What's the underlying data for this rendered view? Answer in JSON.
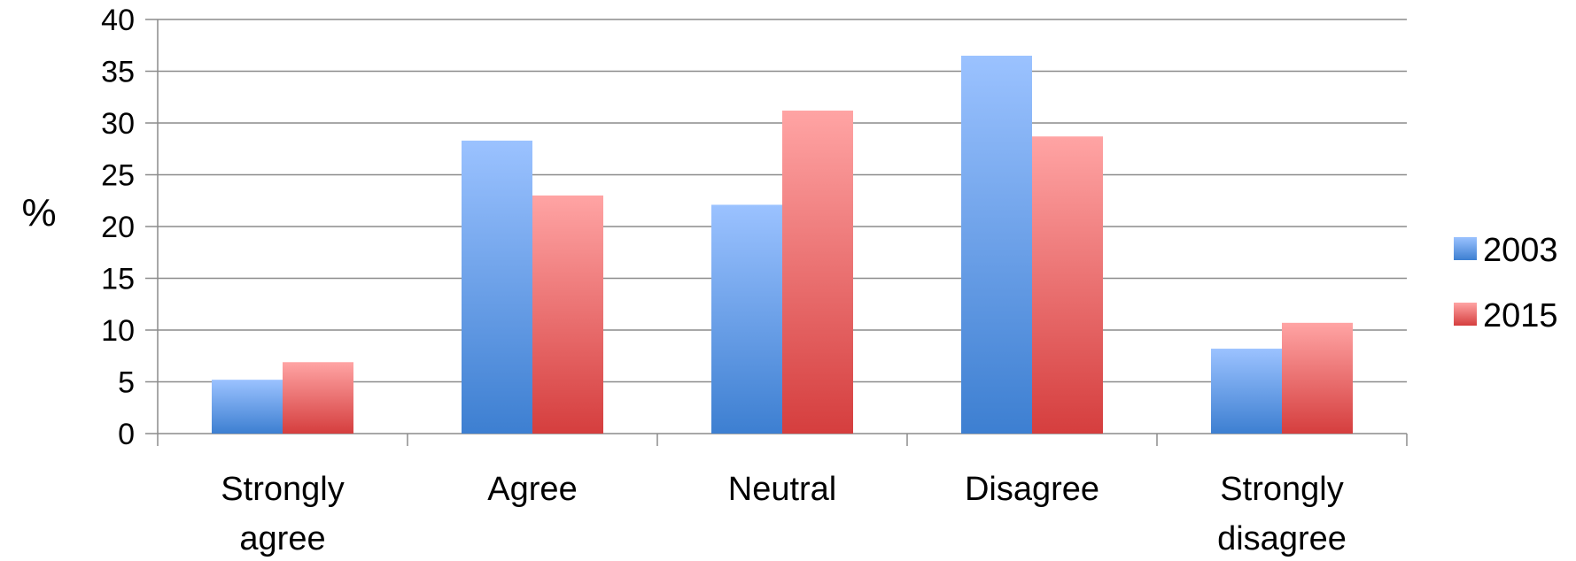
{
  "chart_data": {
    "type": "bar",
    "categories": [
      [
        "Strongly",
        "agree"
      ],
      [
        "Agree"
      ],
      [
        "Neutral"
      ],
      [
        "Disagree"
      ],
      [
        "Strongly",
        "disagree"
      ]
    ],
    "series": [
      {
        "name": "2003",
        "values": [
          5.2,
          28.3,
          22.1,
          36.5,
          8.2
        ],
        "color_top": "#9bc2ff",
        "color_bottom": "#3d7fd1"
      },
      {
        "name": "2015",
        "values": [
          6.9,
          23.0,
          31.2,
          28.7,
          10.7
        ],
        "color_top": "#ffa4a4",
        "color_bottom": "#d53e3e"
      }
    ],
    "title": "",
    "xlabel": "",
    "ylabel": "%",
    "ylim": [
      0,
      40
    ],
    "yticks": [
      0,
      5,
      10,
      15,
      20,
      25,
      30,
      35,
      40
    ],
    "grid": true,
    "legend_position": "right"
  }
}
